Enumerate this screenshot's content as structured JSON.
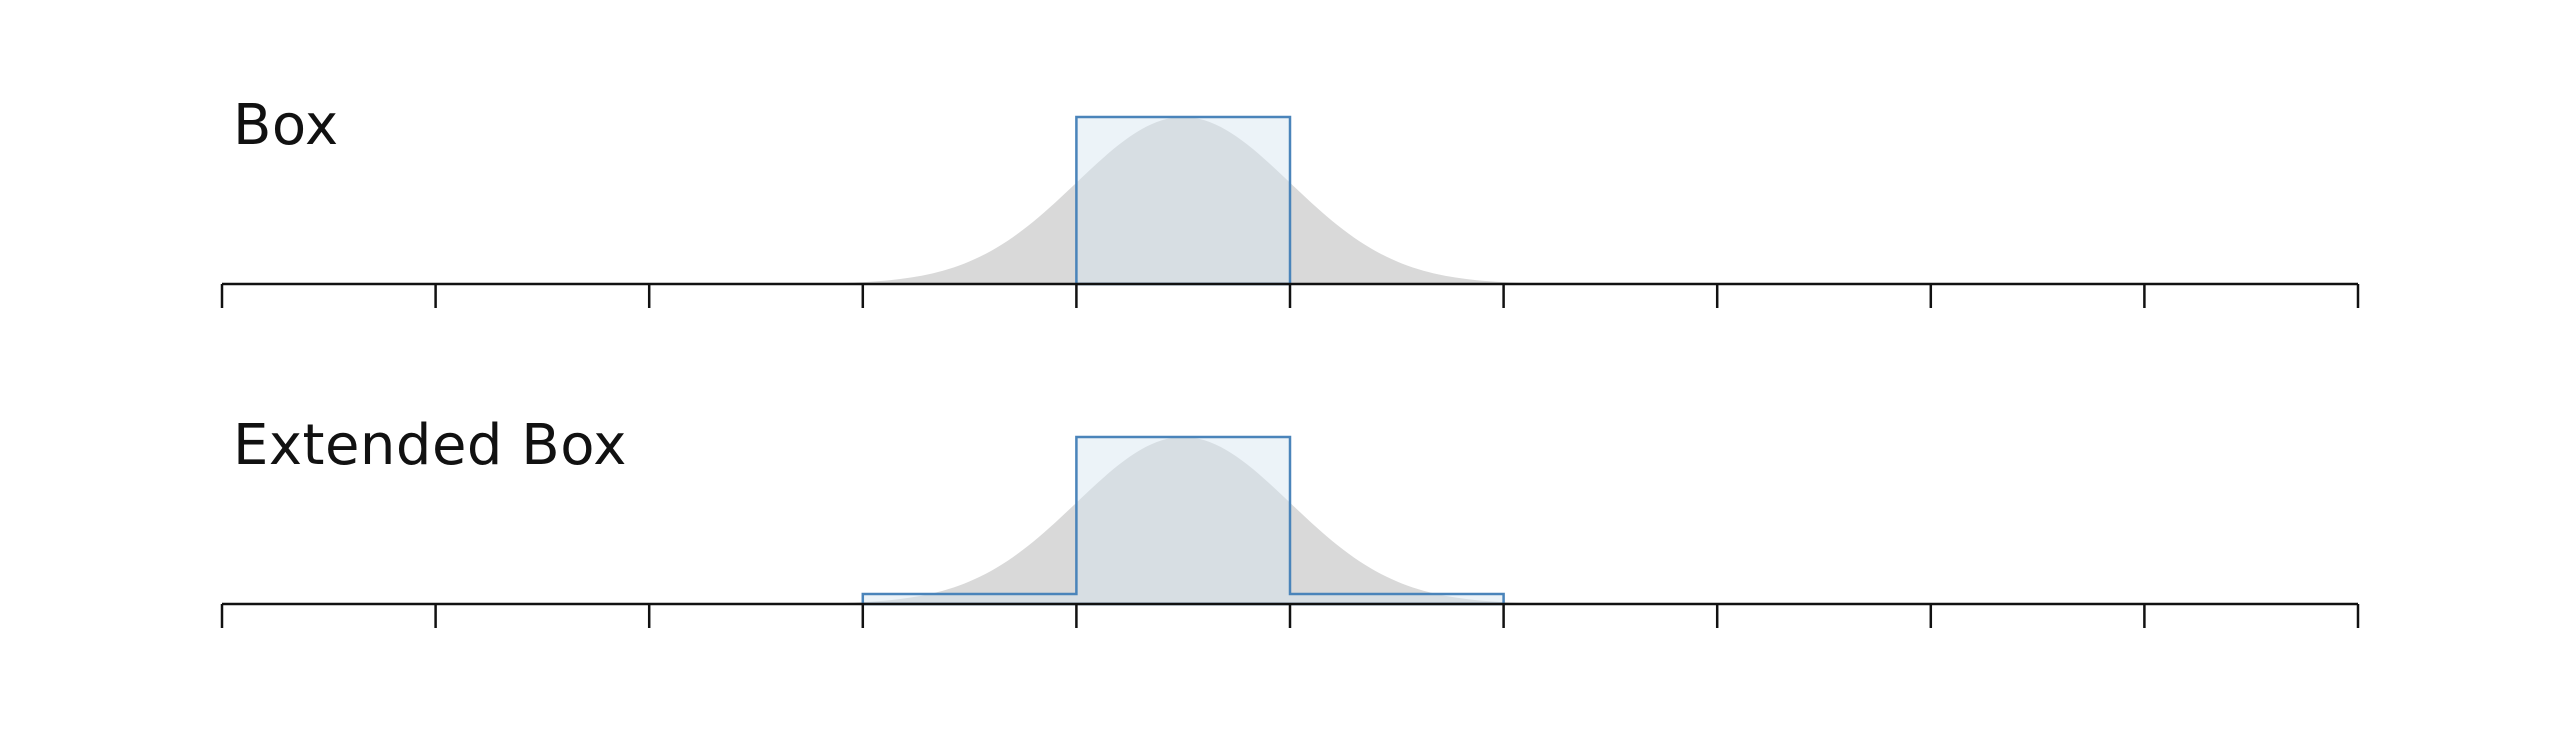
{
  "panels": [
    {
      "title": "Box",
      "kernel": "box",
      "support": [
        -0.5,
        0.5
      ],
      "tail_height": 0
    },
    {
      "title": "Extended Box",
      "kernel": "extended-box",
      "support": [
        -0.5,
        0.5
      ],
      "tail_extent": [
        -1.5,
        1.5
      ],
      "tail_height": 0.06
    }
  ],
  "axis": {
    "range": [
      -4.5,
      5.5
    ],
    "tick_step": 1,
    "tick_count": 11
  },
  "reference_curve": {
    "shape": "gaussian",
    "mean": 0,
    "sigma": 0.5,
    "peak": 1.0
  },
  "colors": {
    "axis": "#111111",
    "gaussian_fill": "#d9d9d9",
    "box_stroke": "#4a84ba",
    "box_fill": "rgba(213,228,240,0.45)",
    "text": "#111111"
  }
}
